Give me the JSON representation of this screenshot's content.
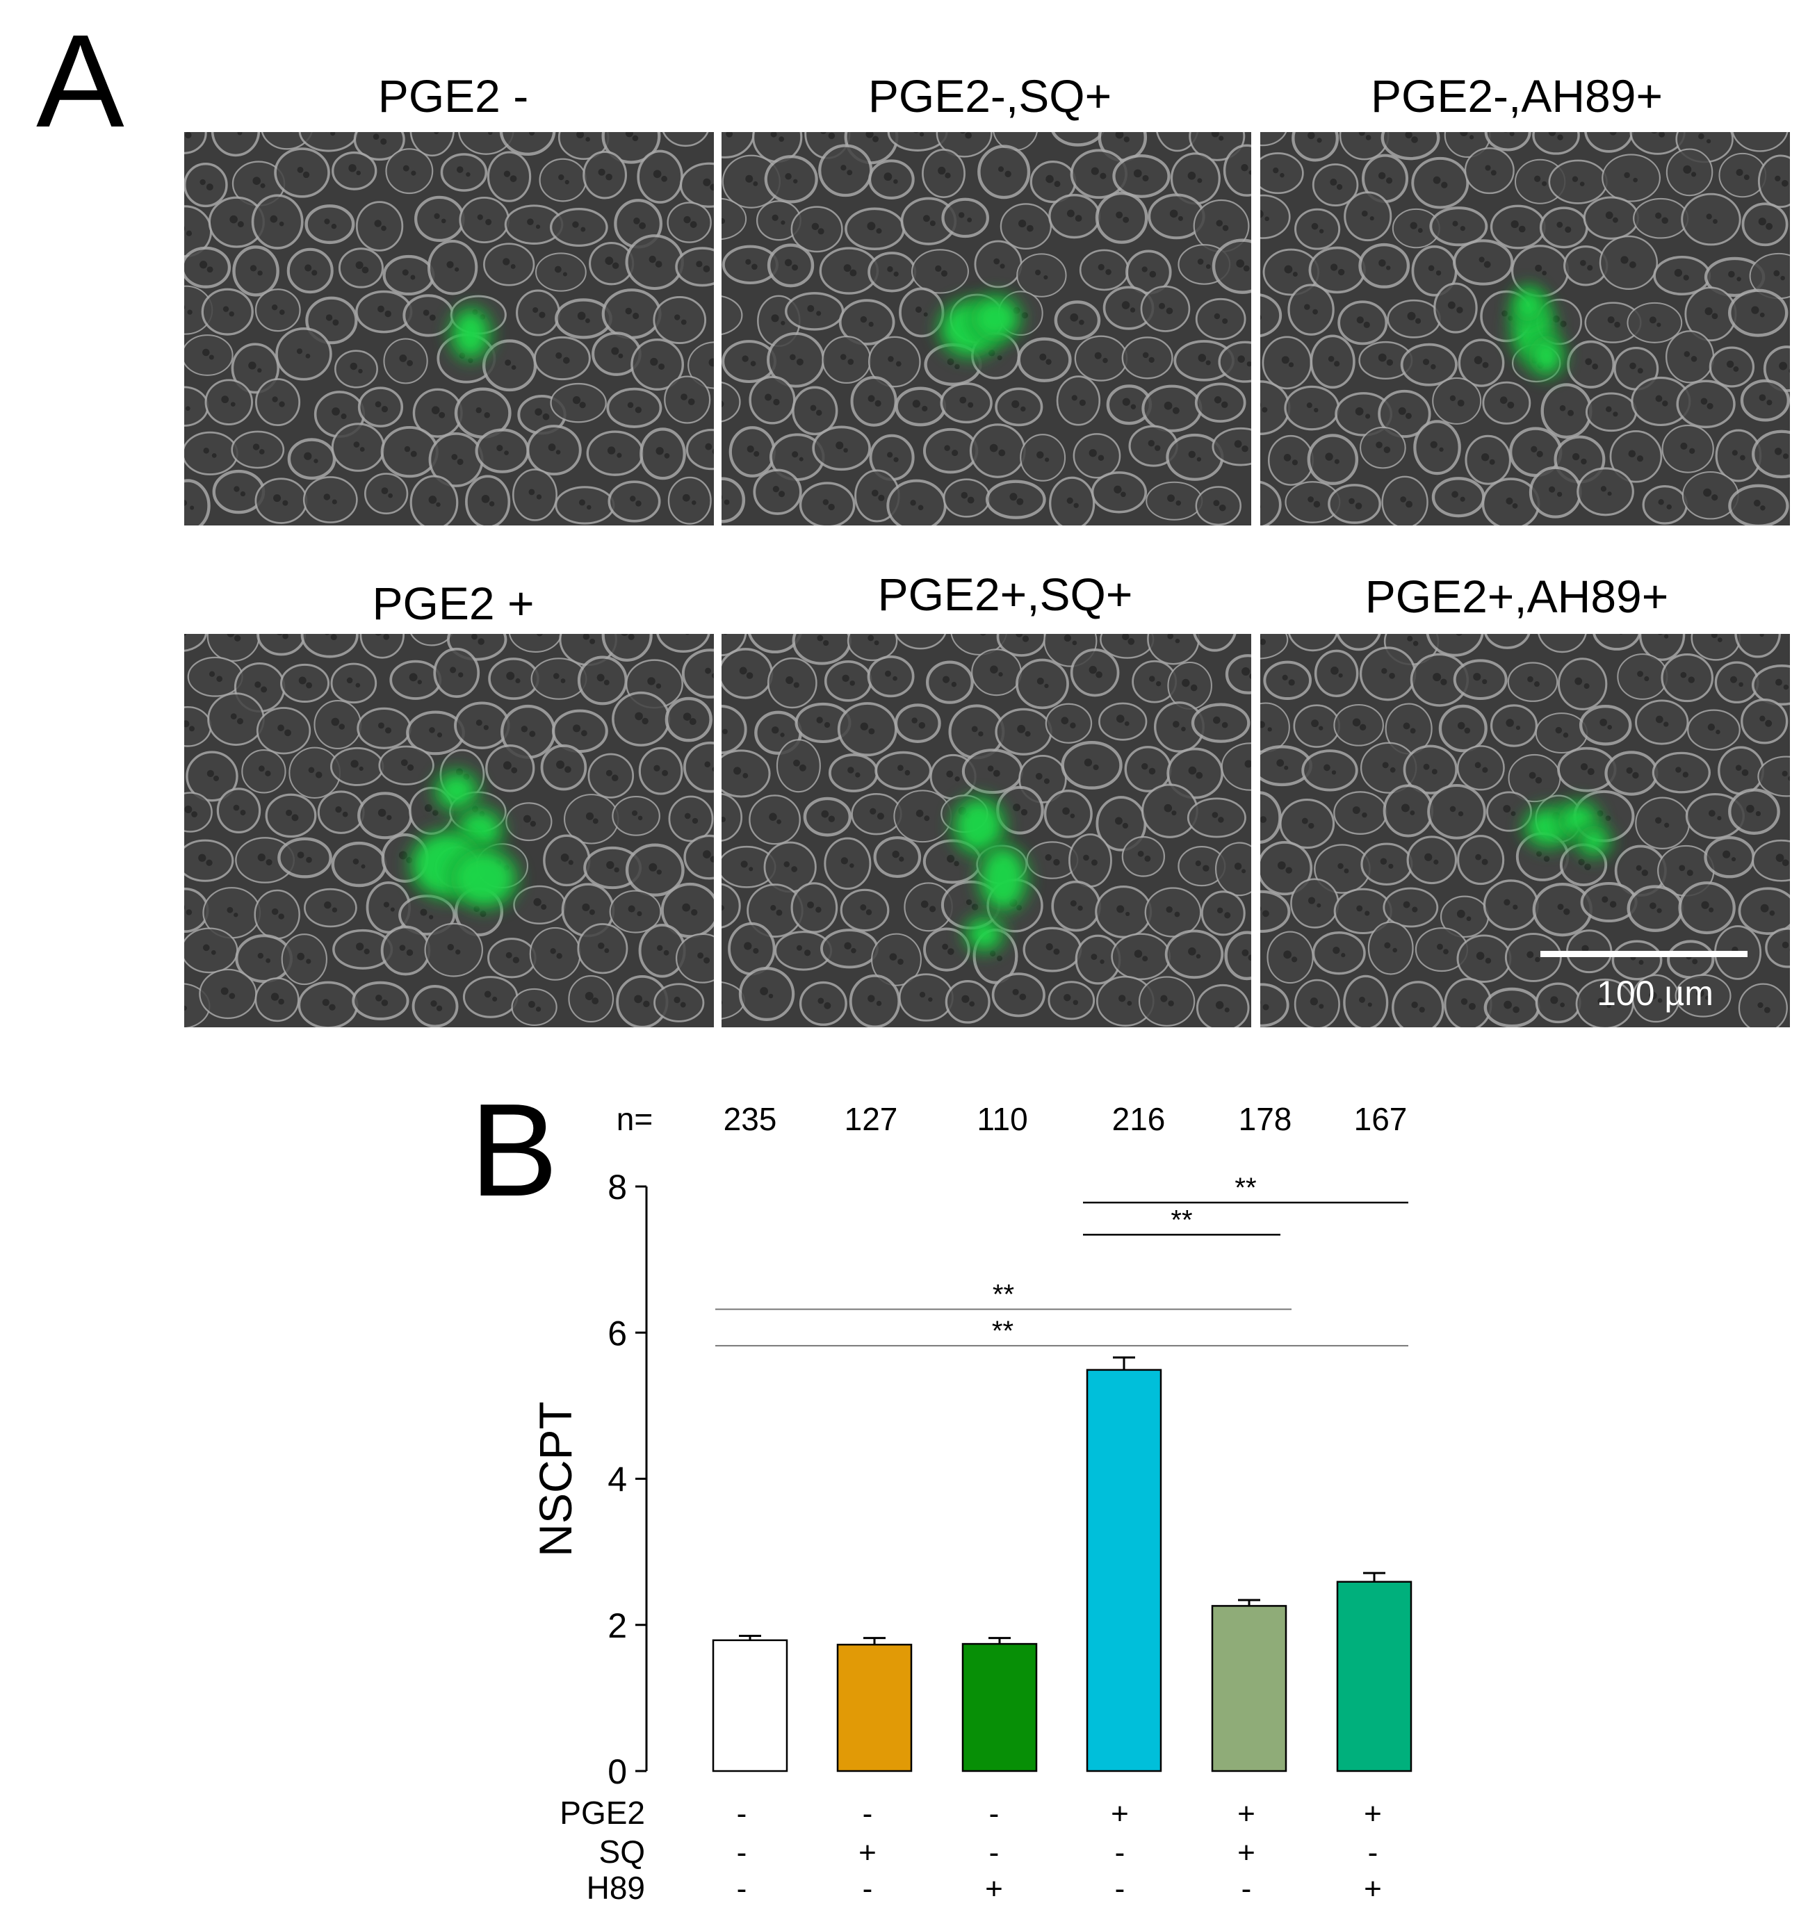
{
  "panels": {
    "a_label": "A",
    "b_label": "B"
  },
  "micrographs": [
    {
      "title": "PGE2 -"
    },
    {
      "title": "PGE2-,SQ+"
    },
    {
      "title": "PGE2-,AH89+"
    },
    {
      "title": "PGE2 +"
    },
    {
      "title": "PGE2+,SQ+"
    },
    {
      "title": "PGE2+,AH89+"
    }
  ],
  "scale_bar": {
    "label": "100 µm"
  },
  "colors": {
    "fluorescence": "#1fd84a",
    "bars": [
      "#ffffff",
      "#e19a06",
      "#078f06",
      "#00bfda",
      "#8fac78",
      "#00b07c"
    ]
  },
  "chart_data": {
    "type": "bar",
    "ylabel": "NSCPT",
    "ylim": [
      0,
      8
    ],
    "yticks": [
      "0",
      "2",
      "4",
      "6",
      "8"
    ],
    "n_label": "n=",
    "n_values": [
      "235",
      "127",
      "110",
      "216",
      "178",
      "167"
    ],
    "values": [
      1.79,
      1.73,
      1.74,
      5.49,
      2.26,
      2.59
    ],
    "errors": [
      0.06,
      0.09,
      0.08,
      0.17,
      0.08,
      0.12
    ],
    "row_labels": [
      "PGE2",
      "SQ",
      "H89"
    ],
    "conditions": [
      [
        "-",
        "-",
        "-",
        "+",
        "+",
        "+"
      ],
      [
        "-",
        "+",
        "-",
        "-",
        "+",
        "-"
      ],
      [
        "-",
        "-",
        "+",
        "-",
        "-",
        "+"
      ]
    ],
    "significance": [
      {
        "label": "**",
        "from": 3,
        "to": 5,
        "y": 7.78
      },
      {
        "label": "**",
        "from": 3,
        "to": 4,
        "y": 7.34
      },
      {
        "label": "**",
        "from": 0,
        "to": 4,
        "y": 6.32
      },
      {
        "label": "**",
        "from": 0,
        "to": 5,
        "y": 5.82
      }
    ]
  }
}
